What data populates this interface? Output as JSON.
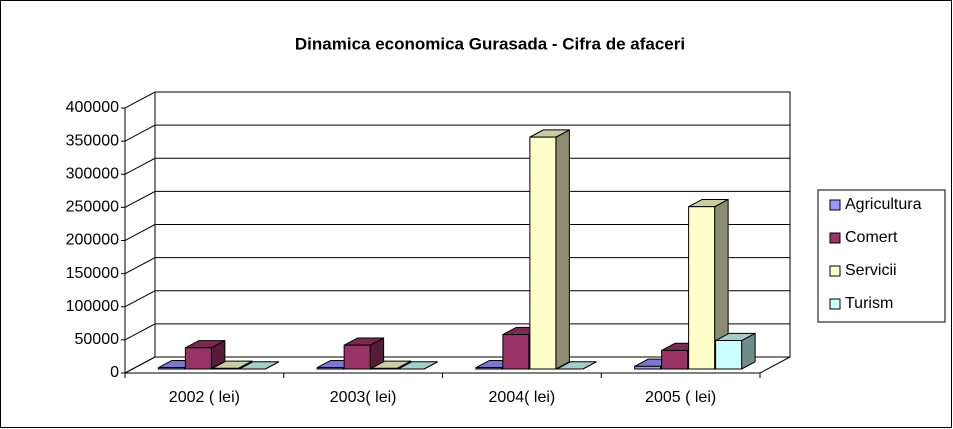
{
  "chart_data": {
    "type": "bar3d",
    "title": "Dinamica economica Gurasada - Cifra de afaceri",
    "categories": [
      "2002 ( lei)",
      "2003( lei)",
      "2004( lei)",
      "2005 ( lei)"
    ],
    "series": [
      {
        "name": "Agricultura",
        "color": "#9999ff",
        "values": [
          2000,
          2000,
          2000,
          4000
        ]
      },
      {
        "name": "Comert",
        "color": "#993366",
        "values": [
          32000,
          36000,
          52000,
          28000
        ]
      },
      {
        "name": "Servicii",
        "color": "#ffffcc",
        "values": [
          1000,
          1000,
          350000,
          245000
        ]
      },
      {
        "name": "Turism",
        "color": "#ccffff",
        "values": [
          0,
          0,
          0,
          43000
        ]
      }
    ],
    "ylim": [
      0,
      400000
    ],
    "yticks": [
      0,
      50000,
      100000,
      150000,
      200000,
      250000,
      300000,
      350000,
      400000
    ],
    "grid": true,
    "legend": "right"
  }
}
